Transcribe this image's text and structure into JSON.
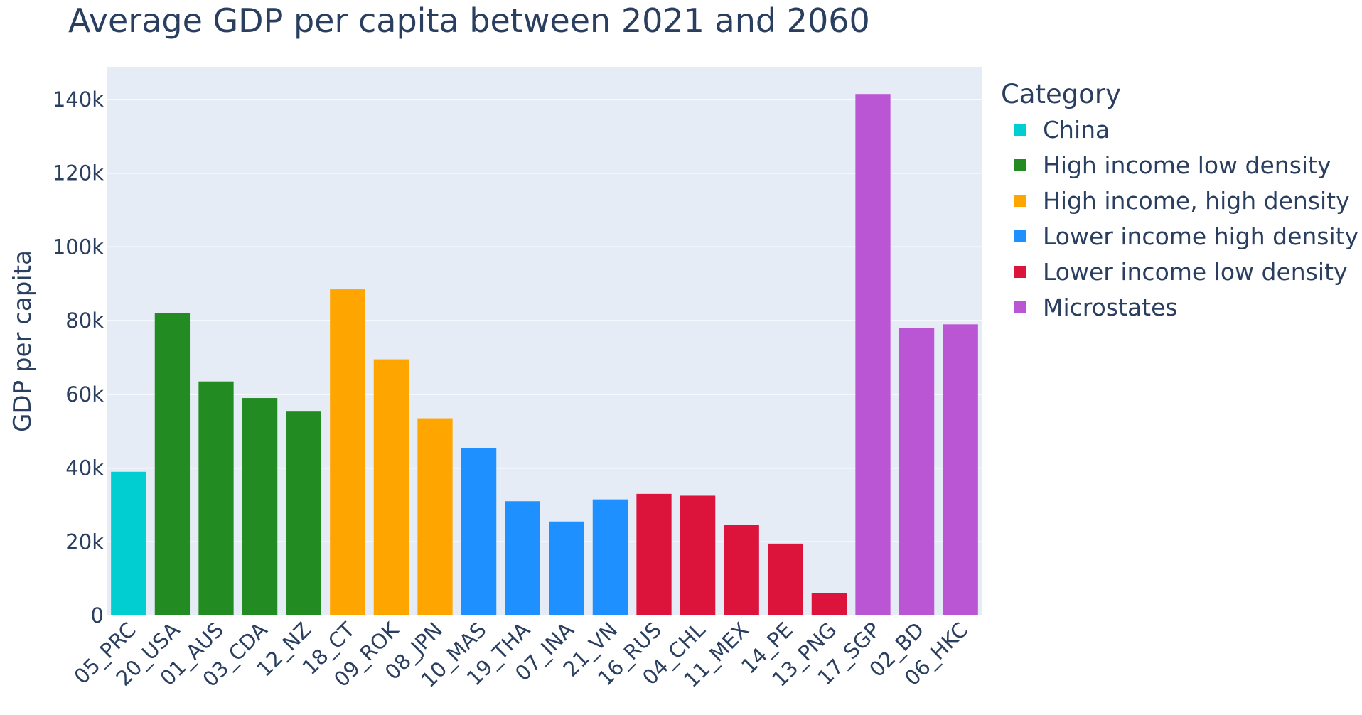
{
  "chart_data": {
    "type": "bar",
    "title": "Average GDP per capita between 2021 and 2060",
    "xlabel": "",
    "ylabel": "GDP per capita",
    "ylim": [
      0,
      150000
    ],
    "y_ticks": [
      0,
      20000,
      40000,
      60000,
      80000,
      100000,
      120000,
      140000
    ],
    "y_tick_labels": [
      "0",
      "20k",
      "40k",
      "60k",
      "80k",
      "100k",
      "120k",
      "140k"
    ],
    "grid": true,
    "plot_background": "#e5ecf6",
    "legend": {
      "title": "Category",
      "placement": "right",
      "entries": [
        {
          "name": "China",
          "color": "#00ced1"
        },
        {
          "name": "High income low density",
          "color": "#228b22"
        },
        {
          "name": "High income, high density",
          "color": "#ffa500"
        },
        {
          "name": "Lower income high density",
          "color": "#1e90ff"
        },
        {
          "name": "Lower income low density",
          "color": "#dc143c"
        },
        {
          "name": "Microstates",
          "color": "#ba55d3"
        }
      ]
    },
    "bars": [
      {
        "label": "05_PRC",
        "value": 39000,
        "category": "China"
      },
      {
        "label": "20_USA",
        "value": 82000,
        "category": "High income low density"
      },
      {
        "label": "01_AUS",
        "value": 63500,
        "category": "High income low density"
      },
      {
        "label": "03_CDA",
        "value": 59000,
        "category": "High income low density"
      },
      {
        "label": "12_NZ",
        "value": 55500,
        "category": "High income low density"
      },
      {
        "label": "18_CT",
        "value": 88500,
        "category": "High income, high density"
      },
      {
        "label": "09_ROK",
        "value": 69500,
        "category": "High income, high density"
      },
      {
        "label": "08_JPN",
        "value": 53500,
        "category": "High income, high density"
      },
      {
        "label": "10_MAS",
        "value": 45500,
        "category": "Lower income high density"
      },
      {
        "label": "19_THA",
        "value": 31000,
        "category": "Lower income high density"
      },
      {
        "label": "07_INA",
        "value": 25500,
        "category": "Lower income high density"
      },
      {
        "label": "21_VN",
        "value": 31500,
        "category": "Lower income high density"
      },
      {
        "label": "16_RUS",
        "value": 33000,
        "category": "Lower income low density"
      },
      {
        "label": "04_CHL",
        "value": 32500,
        "category": "Lower income low density"
      },
      {
        "label": "11_MEX",
        "value": 24500,
        "category": "Lower income low density"
      },
      {
        "label": "14_PE",
        "value": 19500,
        "category": "Lower income low density"
      },
      {
        "label": "13_PNG",
        "value": 6000,
        "category": "Lower income low density"
      },
      {
        "label": "17_SGP",
        "value": 141500,
        "category": "Microstates"
      },
      {
        "label": "02_BD",
        "value": 78000,
        "category": "Microstates"
      },
      {
        "label": "06_HKC",
        "value": 79000,
        "category": "Microstates"
      }
    ]
  }
}
